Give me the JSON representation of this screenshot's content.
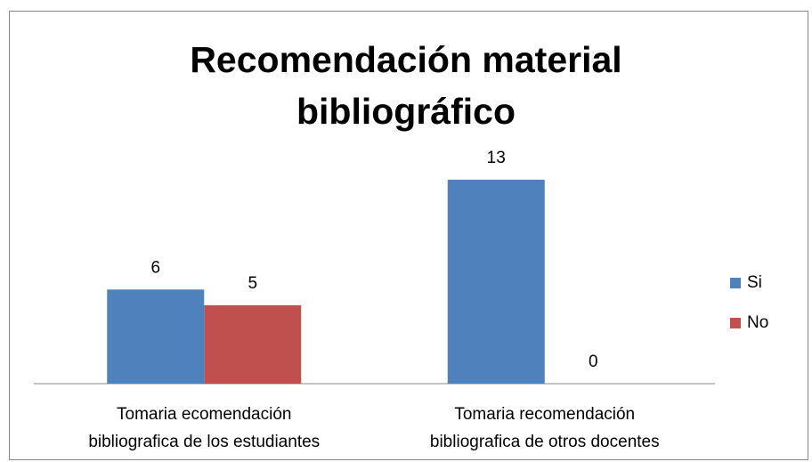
{
  "chart_data": {
    "type": "bar",
    "title": "Recomendación material bibliográfico",
    "categories": [
      [
        "Tomaria ecomendación",
        "bibliografica de los estudiantes"
      ],
      [
        "Tomaria recomendación",
        "bibliografica de otros docentes"
      ]
    ],
    "series": [
      {
        "name": "Si",
        "color": "#4f81bd",
        "values": [
          6,
          13
        ]
      },
      {
        "name": "No",
        "color": "#c0504d",
        "values": [
          5,
          0
        ]
      }
    ],
    "ylim": [
      0,
      16
    ],
    "legend": "right"
  }
}
